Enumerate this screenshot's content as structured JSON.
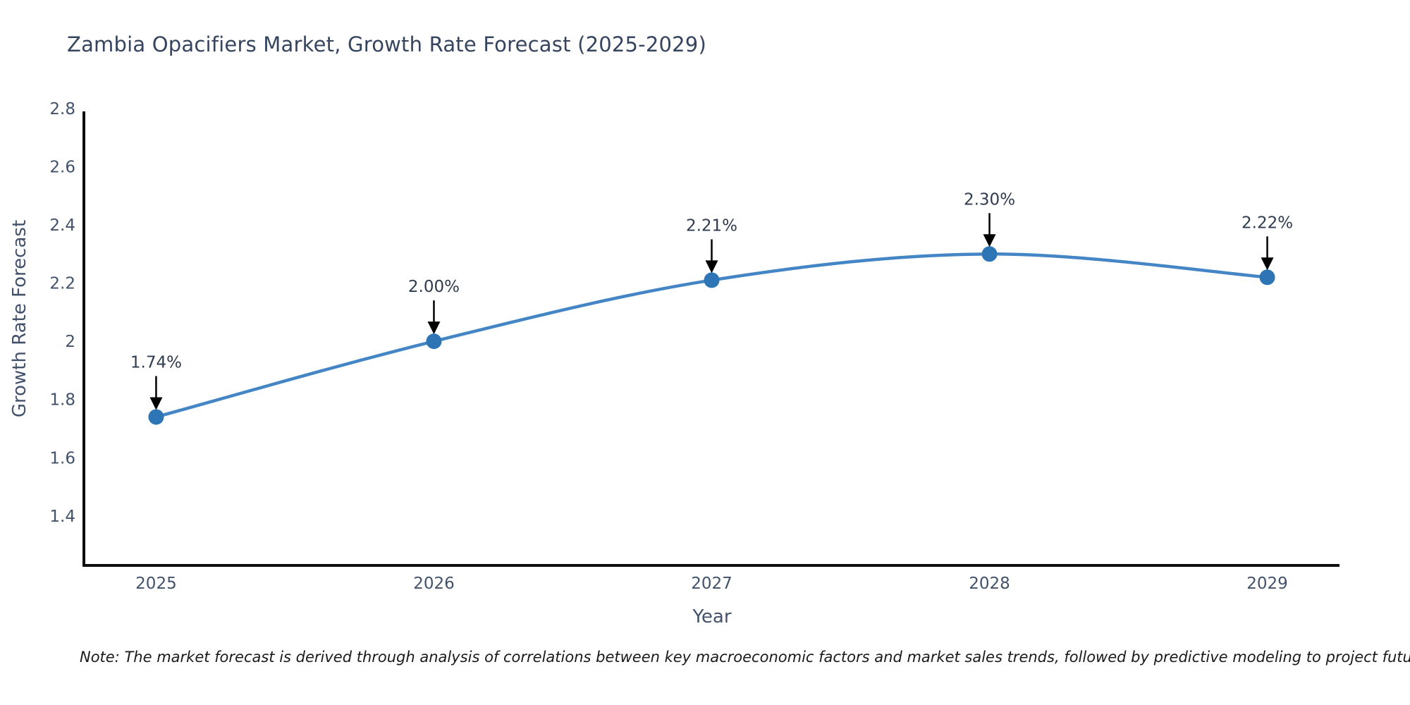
{
  "note": "Note: The market forecast is derived through analysis of correlations between key macroeconomic factors and market sales trends, followed by predictive modeling to project future sales",
  "chart_data": {
    "type": "line",
    "title": "Zambia Opacifiers Market, Growth Rate Forecast (2025-2029)",
    "xlabel": "Year",
    "ylabel": "Growth Rate Forecast",
    "x": [
      2025,
      2026,
      2027,
      2028,
      2029
    ],
    "values": [
      1.74,
      2.0,
      2.21,
      2.3,
      2.22
    ],
    "point_labels": [
      "1.74%",
      "2.00%",
      "2.21%",
      "2.30%",
      "2.22%"
    ],
    "xticks": [
      2025,
      2026,
      2027,
      2028,
      2029
    ],
    "xtick_labels": [
      "2025",
      "2026",
      "2027",
      "2028",
      "2029"
    ],
    "yticks": [
      1.4,
      1.6,
      1.8,
      2.0,
      2.2,
      2.4,
      2.6,
      2.8
    ],
    "ytick_labels": [
      "1.4",
      "1.6",
      "1.8",
      "2",
      "2.2",
      "2.4",
      "2.6",
      "2.8"
    ],
    "xlim": [
      2024.74,
      2029.26
    ],
    "ylim": [
      1.23,
      2.79
    ],
    "grid": false,
    "legend": "none",
    "line_shape": "spline",
    "annotation_arrows": "down-to-point"
  },
  "colors": {
    "background": "#ffffff",
    "title": "#36455f",
    "tick": "#42526b",
    "axis_line": "#0d0d0d",
    "line": "#4486c5",
    "marker": "#2e75b6",
    "annotation_text": "#2f3b4e",
    "arrow": "#000000",
    "note": "#1a1a1a"
  }
}
